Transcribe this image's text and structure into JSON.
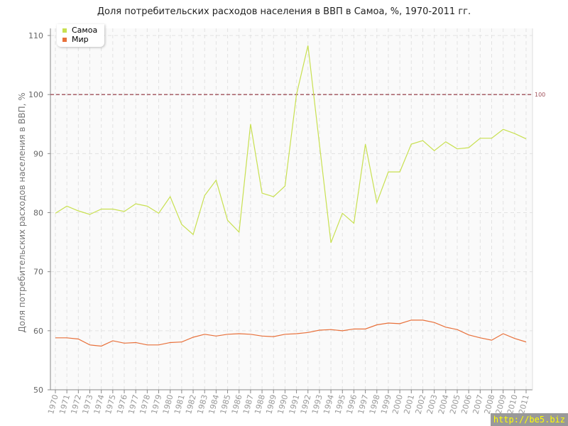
{
  "chart_data": {
    "type": "line",
    "title": "Доля потребительских расходов населения в ВВП в Самоа, %, 1970-2011 гг.",
    "xlabel": "",
    "ylabel": "Доля потребительских расходов населения в ВВП, %",
    "ylim": [
      50,
      110
    ],
    "yticks": [
      50,
      60,
      70,
      80,
      90,
      100,
      110
    ],
    "grid": true,
    "legend_position": "top-left",
    "x": [
      1970,
      1971,
      1972,
      1973,
      1974,
      1975,
      1976,
      1977,
      1978,
      1979,
      1980,
      1981,
      1982,
      1983,
      1984,
      1985,
      1986,
      1987,
      1988,
      1989,
      1990,
      1991,
      1992,
      1993,
      1994,
      1995,
      1996,
      1997,
      1998,
      1999,
      2000,
      2001,
      2002,
      2003,
      2004,
      2005,
      2006,
      2007,
      2008,
      2009,
      2010,
      2011
    ],
    "series": [
      {
        "name": "Самоа",
        "color": "#c8e050",
        "values": [
          79.9,
          81.1,
          80.3,
          79.7,
          80.6,
          80.6,
          80.2,
          81.5,
          81.1,
          79.9,
          82.7,
          78.0,
          76.3,
          82.9,
          85.5,
          78.7,
          76.7,
          95.0,
          83.3,
          82.7,
          84.5,
          100.0,
          108.3,
          91.6,
          74.9,
          79.9,
          78.2,
          91.6,
          81.7,
          86.9,
          86.9,
          91.6,
          92.2,
          90.5,
          92.0,
          90.8,
          91.0,
          92.6,
          92.6,
          94.1,
          93.4,
          92.5
        ]
      },
      {
        "name": "Мир",
        "color": "#e8703a",
        "values": [
          58.8,
          58.8,
          58.6,
          57.6,
          57.4,
          58.3,
          57.9,
          58.0,
          57.6,
          57.6,
          58.0,
          58.1,
          58.9,
          59.4,
          59.1,
          59.4,
          59.5,
          59.4,
          59.1,
          59.0,
          59.4,
          59.5,
          59.7,
          60.1,
          60.2,
          60.0,
          60.3,
          60.3,
          61.0,
          61.3,
          61.2,
          61.8,
          61.8,
          61.4,
          60.6,
          60.2,
          59.3,
          58.8,
          58.4,
          59.5,
          58.7,
          58.1
        ]
      }
    ],
    "reference_line": {
      "value": 100,
      "label": "100",
      "color": "#a0505a"
    }
  },
  "watermark": "http://be5.biz"
}
